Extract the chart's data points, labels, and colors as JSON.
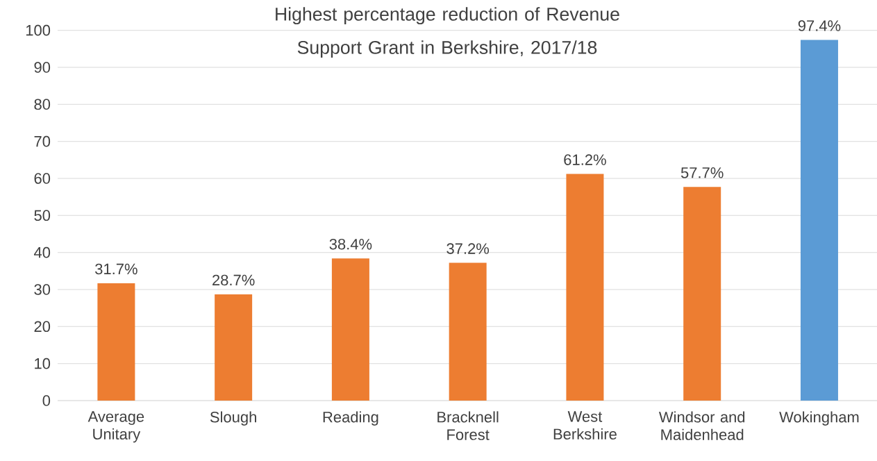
{
  "chart_data": {
    "type": "bar",
    "title": "Highest percentage reduction of Revenue Support Grant in Berkshire, 2017/18",
    "categories": [
      "Average Unitary",
      "Slough",
      "Reading",
      "Bracknell Forest",
      "West Berkshire",
      "Windsor and Maidenhead",
      "Wokingham"
    ],
    "values": [
      31.7,
      28.7,
      38.4,
      37.2,
      61.2,
      57.7,
      97.4
    ],
    "colors": [
      "#ed7d31",
      "#ed7d31",
      "#ed7d31",
      "#ed7d31",
      "#ed7d31",
      "#ed7d31",
      "#5b9bd5"
    ],
    "value_labels": [
      "31.7%",
      "28.7%",
      "38.4%",
      "37.2%",
      "61.2%",
      "57.7%",
      "97.4%"
    ],
    "ylim": [
      0,
      100
    ],
    "yticks": [
      0,
      10,
      20,
      30,
      40,
      50,
      60,
      70,
      80,
      90,
      100
    ],
    "grid": "y"
  }
}
